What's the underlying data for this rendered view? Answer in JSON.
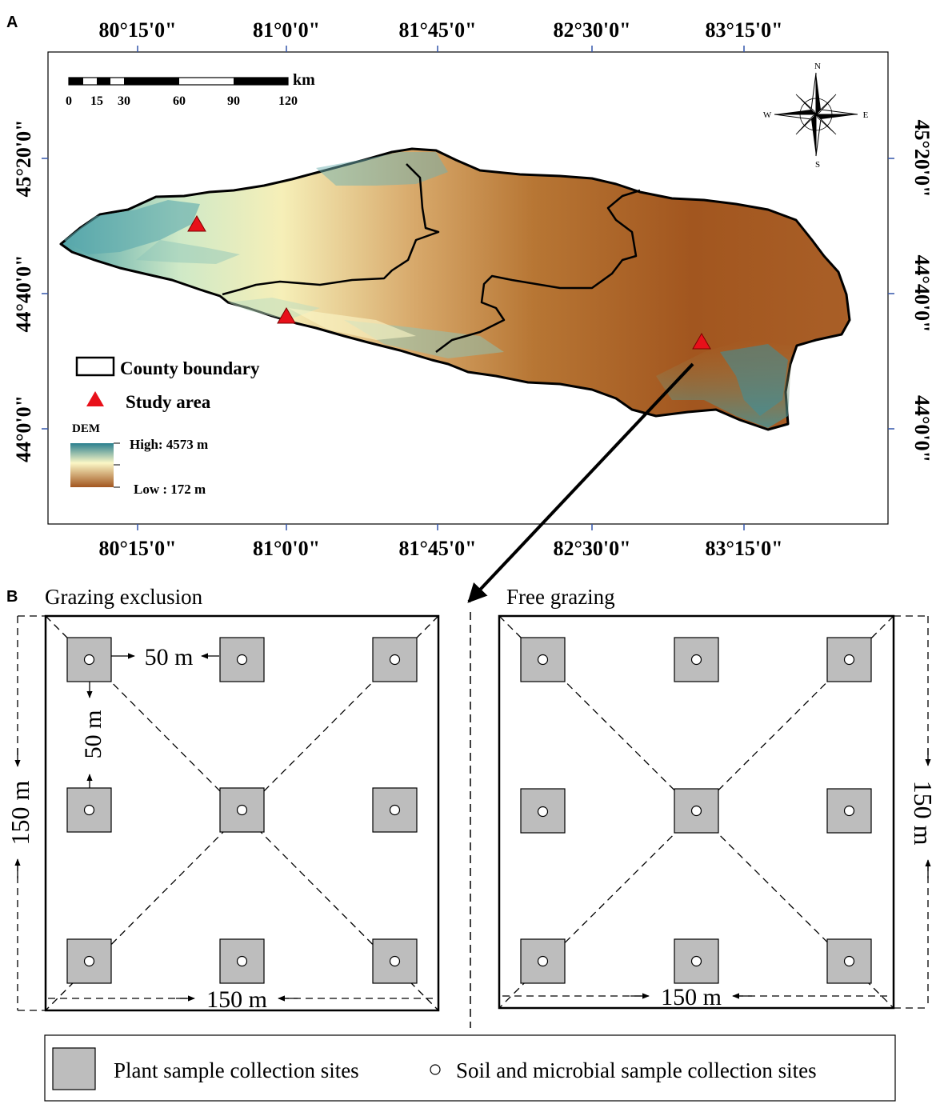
{
  "panel_a": {
    "label": "A",
    "lon_ticks": [
      "80°15'0\"",
      "81°0'0\"",
      "81°45'0\"",
      "82°30'0\"",
      "83°15'0\""
    ],
    "lat_ticks": [
      "45°20'0\"",
      "44°40'0\"",
      "44°0'0\""
    ],
    "scale_bar": {
      "unit": "km",
      "ticks": [
        "0",
        "15",
        "30",
        "60",
        "90",
        "120"
      ]
    },
    "compass": {
      "n": "N",
      "s": "S",
      "e": "E",
      "w": "W"
    },
    "legend": {
      "county_boundary": "County boundary",
      "study_area": "Study area",
      "dem_title": "DEM",
      "dem_high": "High: 4573 m",
      "dem_low": "Low : 172 m"
    },
    "colors": {
      "study_area": "#e8101a",
      "dem_high": "#2a7f8f",
      "dem_mid": "#fbf7c6",
      "dem_low": "#a2561f"
    }
  },
  "panel_b": {
    "label": "B",
    "left_title": "Grazing exclusion",
    "right_title": "Free grazing",
    "dim_150": "150 m",
    "dim_50": "50 m",
    "legend": {
      "plant": "Plant sample collection sites",
      "soil": "Soil and microbial sample collection sites"
    }
  }
}
